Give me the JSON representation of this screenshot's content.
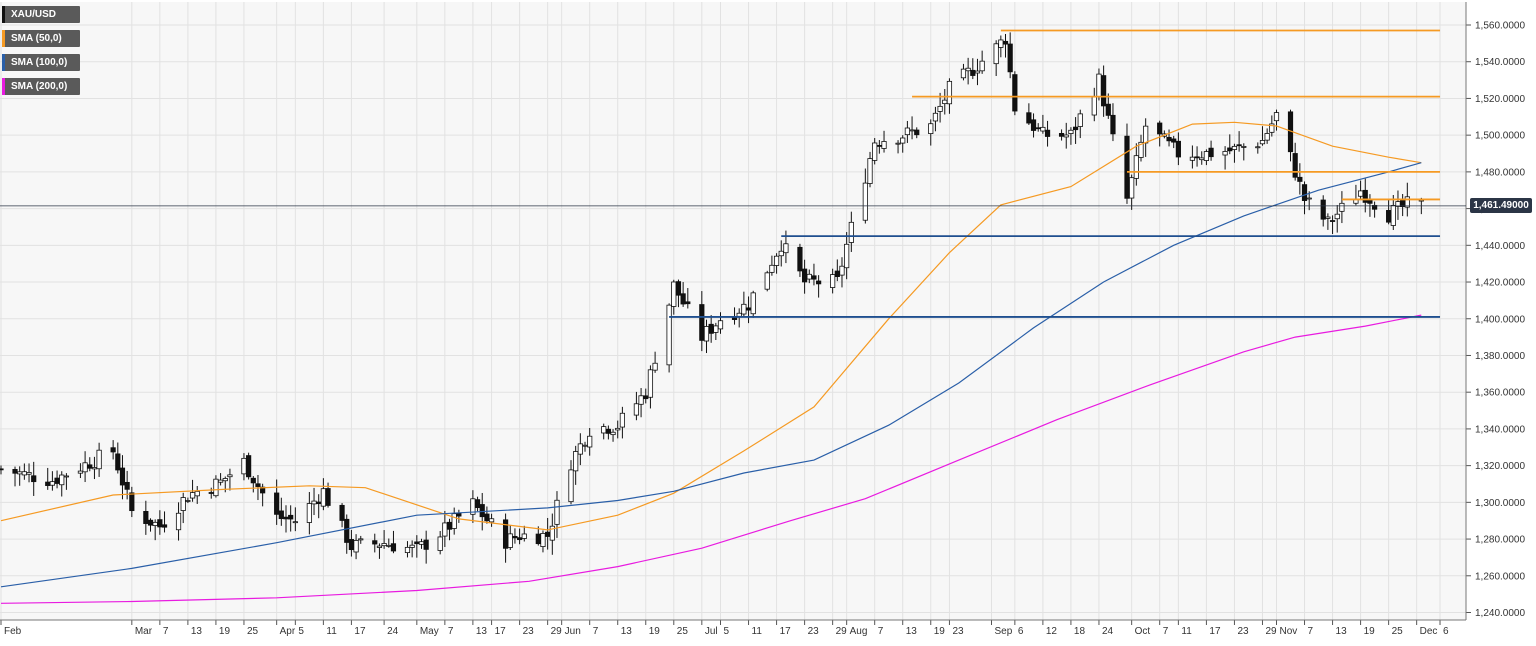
{
  "legend": [
    {
      "label": "XAU/USD",
      "color": "#111111"
    },
    {
      "label": "SMA (50,0)",
      "color": "#f59a23"
    },
    {
      "label": "SMA (100,0)",
      "color": "#2a5fa8"
    },
    {
      "label": "SMA (200,0)",
      "color": "#e81be0"
    }
  ],
  "last_price_label": "1,461.49000",
  "colors": {
    "background": "#f7f7f7",
    "grid": "#e2e2e2",
    "up": "#ffffff",
    "down": "#111111",
    "sma50": "#f59a23",
    "sma100": "#2a5fa8",
    "sma200": "#e81be0",
    "resistance": "#f59a23",
    "support": "#1f4f8f",
    "last_line": "#2b3546"
  },
  "chart_data": {
    "type": "candlestick",
    "title": "",
    "xlabel": "",
    "ylabel": "",
    "ylim": [
      1235,
      1565
    ],
    "grid": true,
    "legend_position": "top-left",
    "yticks": [
      1240,
      1260,
      1280,
      1300,
      1320,
      1340,
      1360,
      1380,
      1400,
      1420,
      1440,
      1460,
      1480,
      1500,
      1520,
      1540,
      1560
    ],
    "ytick_labels": [
      "1,240.0000",
      "1,260.0000",
      "1,280.0000",
      "1,300.0000",
      "1,320.0000",
      "1,340.0000",
      "1,360.0000",
      "1,380.0000",
      "1,400.0000",
      "1,420.0000",
      "1,440.0000",
      "1,460.0000",
      "1,480.0000",
      "1,500.0000",
      "1,520.0000",
      "1,540.0000",
      "1,560.0000"
    ],
    "xticks": [
      {
        "date": "2019-02-01",
        "label": "Feb"
      },
      {
        "date": "2019-03-01",
        "label": "Mar"
      },
      {
        "date": "2019-03-07",
        "label": "7"
      },
      {
        "date": "2019-03-13",
        "label": "13"
      },
      {
        "date": "2019-03-19",
        "label": "19"
      },
      {
        "date": "2019-03-25",
        "label": "25"
      },
      {
        "date": "2019-04-01",
        "label": "Apr"
      },
      {
        "date": "2019-04-05",
        "label": "5"
      },
      {
        "date": "2019-04-11",
        "label": "11"
      },
      {
        "date": "2019-04-17",
        "label": "17"
      },
      {
        "date": "2019-04-24",
        "label": "24"
      },
      {
        "date": "2019-05-01",
        "label": "May"
      },
      {
        "date": "2019-05-07",
        "label": "7"
      },
      {
        "date": "2019-05-13",
        "label": "13"
      },
      {
        "date": "2019-05-17",
        "label": "17"
      },
      {
        "date": "2019-05-23",
        "label": "23"
      },
      {
        "date": "2019-05-29",
        "label": "29"
      },
      {
        "date": "2019-06-01",
        "label": "Jun"
      },
      {
        "date": "2019-06-07",
        "label": "7"
      },
      {
        "date": "2019-06-13",
        "label": "13"
      },
      {
        "date": "2019-06-19",
        "label": "19"
      },
      {
        "date": "2019-06-25",
        "label": "25"
      },
      {
        "date": "2019-07-01",
        "label": "Jul"
      },
      {
        "date": "2019-07-05",
        "label": "5"
      },
      {
        "date": "2019-07-11",
        "label": "11"
      },
      {
        "date": "2019-07-17",
        "label": "17"
      },
      {
        "date": "2019-07-23",
        "label": "23"
      },
      {
        "date": "2019-07-29",
        "label": "29"
      },
      {
        "date": "2019-08-01",
        "label": "Aug"
      },
      {
        "date": "2019-08-07",
        "label": "7"
      },
      {
        "date": "2019-08-13",
        "label": "13"
      },
      {
        "date": "2019-08-19",
        "label": "19"
      },
      {
        "date": "2019-08-23",
        "label": "23"
      },
      {
        "date": "2019-09-01",
        "label": "Sep"
      },
      {
        "date": "2019-09-06",
        "label": "6"
      },
      {
        "date": "2019-09-12",
        "label": "12"
      },
      {
        "date": "2019-09-18",
        "label": "18"
      },
      {
        "date": "2019-09-24",
        "label": "24"
      },
      {
        "date": "2019-10-01",
        "label": "Oct"
      },
      {
        "date": "2019-10-07",
        "label": "7"
      },
      {
        "date": "2019-10-11",
        "label": "11"
      },
      {
        "date": "2019-10-17",
        "label": "17"
      },
      {
        "date": "2019-10-23",
        "label": "23"
      },
      {
        "date": "2019-10-29",
        "label": "29"
      },
      {
        "date": "2019-11-01",
        "label": "Nov"
      },
      {
        "date": "2019-11-07",
        "label": "7"
      },
      {
        "date": "2019-11-13",
        "label": "13"
      },
      {
        "date": "2019-11-19",
        "label": "19"
      },
      {
        "date": "2019-11-25",
        "label": "25"
      },
      {
        "date": "2019-12-01",
        "label": "Dec"
      },
      {
        "date": "2019-12-06",
        "label": "6"
      }
    ],
    "price_path": [
      [
        "2019-02-01",
        1318
      ],
      [
        "2019-02-12",
        1312
      ],
      [
        "2019-02-25",
        1328
      ],
      [
        "2019-03-01",
        1295
      ],
      [
        "2019-03-07",
        1287
      ],
      [
        "2019-03-13",
        1304
      ],
      [
        "2019-03-20",
        1311
      ],
      [
        "2019-03-25",
        1322
      ],
      [
        "2019-04-01",
        1292
      ],
      [
        "2019-04-05",
        1290
      ],
      [
        "2019-04-11",
        1306
      ],
      [
        "2019-04-17",
        1276
      ],
      [
        "2019-04-24",
        1278
      ],
      [
        "2019-05-01",
        1274
      ],
      [
        "2019-05-07",
        1285
      ],
      [
        "2019-05-13",
        1299
      ],
      [
        "2019-05-20",
        1279
      ],
      [
        "2019-05-23",
        1282
      ],
      [
        "2019-05-29",
        1282
      ],
      [
        "2019-06-03",
        1322
      ],
      [
        "2019-06-07",
        1340
      ],
      [
        "2019-06-13",
        1342
      ],
      [
        "2019-06-19",
        1360
      ],
      [
        "2019-06-25",
        1418
      ],
      [
        "2019-07-01",
        1390
      ],
      [
        "2019-07-05",
        1400
      ],
      [
        "2019-07-11",
        1408
      ],
      [
        "2019-07-18",
        1441
      ],
      [
        "2019-07-23",
        1420
      ],
      [
        "2019-07-30",
        1420
      ],
      [
        "2019-08-01",
        1440
      ],
      [
        "2019-08-07",
        1497
      ],
      [
        "2019-08-13",
        1500
      ],
      [
        "2019-08-19",
        1505
      ],
      [
        "2019-08-23",
        1525
      ],
      [
        "2019-09-01",
        1545
      ],
      [
        "2019-09-04",
        1553
      ],
      [
        "2019-09-06",
        1515
      ],
      [
        "2019-09-12",
        1500
      ],
      [
        "2019-09-18",
        1500
      ],
      [
        "2019-09-24",
        1530
      ],
      [
        "2019-09-30",
        1465
      ],
      [
        "2019-10-04",
        1505
      ],
      [
        "2019-10-11",
        1490
      ],
      [
        "2019-10-17",
        1490
      ],
      [
        "2019-10-23",
        1492
      ],
      [
        "2019-10-29",
        1497
      ],
      [
        "2019-11-01",
        1511
      ],
      [
        "2019-11-07",
        1465
      ],
      [
        "2019-11-12",
        1452
      ],
      [
        "2019-11-19",
        1470
      ],
      [
        "2019-11-25",
        1457
      ],
      [
        "2019-11-29",
        1462
      ],
      [
        "2019-12-02",
        1461.49
      ]
    ],
    "series": [
      {
        "name": "SMA (50,0)",
        "points": [
          [
            "2019-02-01",
            1290
          ],
          [
            "2019-02-25",
            1304
          ],
          [
            "2019-03-20",
            1307
          ],
          [
            "2019-04-08",
            1309
          ],
          [
            "2019-04-20",
            1308
          ],
          [
            "2019-05-10",
            1291
          ],
          [
            "2019-05-29",
            1285
          ],
          [
            "2019-06-13",
            1293
          ],
          [
            "2019-06-25",
            1305
          ],
          [
            "2019-07-10",
            1328
          ],
          [
            "2019-07-25",
            1352
          ],
          [
            "2019-08-10",
            1400
          ],
          [
            "2019-08-23",
            1436
          ],
          [
            "2019-09-03",
            1462
          ],
          [
            "2019-09-18",
            1472
          ],
          [
            "2019-10-02",
            1494
          ],
          [
            "2019-10-14",
            1506
          ],
          [
            "2019-10-23",
            1507
          ],
          [
            "2019-11-01",
            1505
          ],
          [
            "2019-11-13",
            1494
          ],
          [
            "2019-11-25",
            1488
          ],
          [
            "2019-12-02",
            1485
          ]
        ]
      },
      {
        "name": "SMA (100,0)",
        "points": [
          [
            "2019-02-01",
            1254
          ],
          [
            "2019-03-01",
            1264
          ],
          [
            "2019-04-01",
            1278
          ],
          [
            "2019-05-01",
            1293
          ],
          [
            "2019-05-29",
            1297
          ],
          [
            "2019-06-13",
            1301
          ],
          [
            "2019-06-25",
            1306
          ],
          [
            "2019-07-10",
            1316
          ],
          [
            "2019-07-25",
            1323
          ],
          [
            "2019-08-10",
            1342
          ],
          [
            "2019-08-25",
            1365
          ],
          [
            "2019-09-10",
            1395
          ],
          [
            "2019-09-25",
            1420
          ],
          [
            "2019-10-10",
            1440
          ],
          [
            "2019-10-25",
            1456
          ],
          [
            "2019-11-10",
            1470
          ],
          [
            "2019-11-25",
            1480
          ],
          [
            "2019-12-02",
            1485
          ]
        ]
      },
      {
        "name": "SMA (200,0)",
        "points": [
          [
            "2019-02-01",
            1245
          ],
          [
            "2019-03-01",
            1246
          ],
          [
            "2019-04-01",
            1248
          ],
          [
            "2019-05-01",
            1252
          ],
          [
            "2019-05-25",
            1257
          ],
          [
            "2019-06-13",
            1265
          ],
          [
            "2019-07-01",
            1275
          ],
          [
            "2019-07-20",
            1290
          ],
          [
            "2019-08-05",
            1302
          ],
          [
            "2019-08-25",
            1323
          ],
          [
            "2019-09-15",
            1345
          ],
          [
            "2019-10-05",
            1364
          ],
          [
            "2019-10-25",
            1382
          ],
          [
            "2019-11-05",
            1390
          ],
          [
            "2019-11-20",
            1396
          ],
          [
            "2019-12-02",
            1402
          ]
        ]
      }
    ],
    "levels": [
      {
        "role": "resistance",
        "value": 1557,
        "from": "2019-09-03",
        "to": "2019-12-06"
      },
      {
        "role": "resistance",
        "value": 1521,
        "from": "2019-08-15",
        "to": "2019-12-06"
      },
      {
        "role": "resistance",
        "value": 1480,
        "from": "2019-09-30",
        "to": "2019-12-06"
      },
      {
        "role": "resistance",
        "value": 1465,
        "from": "2019-11-15",
        "to": "2019-12-06"
      },
      {
        "role": "support",
        "value": 1445,
        "from": "2019-07-18",
        "to": "2019-12-06"
      },
      {
        "role": "support",
        "value": 1401,
        "from": "2019-06-24",
        "to": "2019-12-06"
      }
    ],
    "last_price": 1461.49
  }
}
